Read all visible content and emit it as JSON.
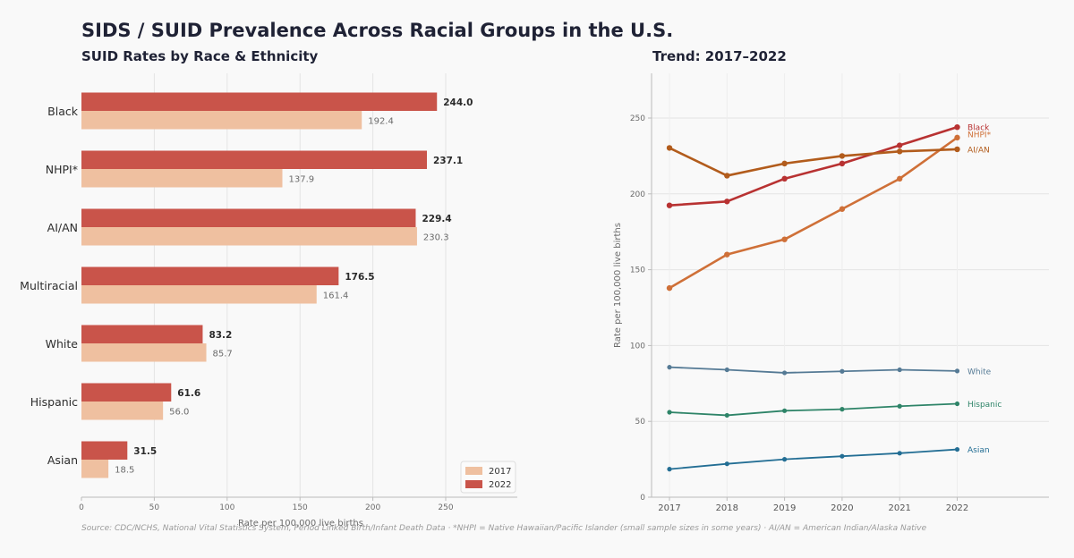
{
  "title": "SIDS / SUID Prevalence Across Racial Groups in the U.S.",
  "source_note": "Source: CDC/NCHS, National Vital Statistics System, Period Linked Birth/Infant Death Data  ·  *NHPI = Native Hawaiian/Pacific Islander (small sample sizes in some years)  ·  AI/AN = American Indian/Alaska Native",
  "colors": {
    "bar_2017": "#efc0a0",
    "bar_2022": "#c9544a",
    "Black": "#b83232",
    "NHPI*": "#cf7038",
    "AI/AN": "#b25c1c",
    "White": "#557a95",
    "Hispanic": "#2e8468",
    "Asian": "#236e94"
  },
  "chart_data": [
    {
      "type": "bar",
      "orientation": "horizontal",
      "title": "SUID Rates by Race & Ethnicity",
      "xlabel": "Rate per 100,000 live births",
      "ylabel": "",
      "xlim": [
        0,
        295
      ],
      "xticks": [
        0,
        50,
        100,
        150,
        200,
        250
      ],
      "grid": true,
      "legend": "bottom-right",
      "categories": [
        "Black",
        "NHPI*",
        "AI/AN",
        "Multiracial",
        "White",
        "Hispanic",
        "Asian"
      ],
      "series": [
        {
          "name": "2017",
          "values": [
            192.4,
            137.9,
            230.3,
            161.4,
            85.7,
            56.0,
            18.5
          ],
          "labels": [
            "192.4",
            "137.9",
            "230.3",
            "161.4",
            "85.7",
            "56.0",
            "18.5"
          ]
        },
        {
          "name": "2022",
          "values": [
            244.0,
            237.1,
            229.4,
            176.5,
            83.2,
            61.6,
            31.5
          ],
          "labels": [
            "244.0",
            "237.1",
            "229.4",
            "176.5",
            "83.2",
            "61.6",
            "31.5"
          ]
        }
      ]
    },
    {
      "type": "line",
      "title": "Trend: 2017–2022",
      "xlabel": "",
      "ylabel": "Rate per 100,000 live births",
      "x": [
        2017,
        2018,
        2019,
        2020,
        2021,
        2022
      ],
      "xticks": [
        "2017",
        "2018",
        "2019",
        "2020",
        "2021",
        "2022"
      ],
      "xlim": [
        2016.7,
        2023.6
      ],
      "ylim": [
        0,
        280
      ],
      "yticks": [
        0,
        50,
        100,
        150,
        200,
        250
      ],
      "grid": true,
      "legend": "direct labels at line ends",
      "series": [
        {
          "name": "Black",
          "values": [
            192.4,
            195,
            210,
            220,
            232,
            244.0
          ]
        },
        {
          "name": "NHPI*",
          "values": [
            137.9,
            160,
            170,
            190,
            210,
            237.1
          ]
        },
        {
          "name": "AI/AN",
          "values": [
            230.3,
            212,
            220,
            225,
            228,
            229.4
          ]
        },
        {
          "name": "White",
          "values": [
            85.7,
            84,
            82,
            83,
            84,
            83.2
          ]
        },
        {
          "name": "Hispanic",
          "values": [
            56.0,
            54,
            57,
            58,
            60,
            61.6
          ]
        },
        {
          "name": "Asian",
          "values": [
            18.5,
            22,
            25,
            27,
            29,
            31.5
          ]
        }
      ]
    }
  ]
}
